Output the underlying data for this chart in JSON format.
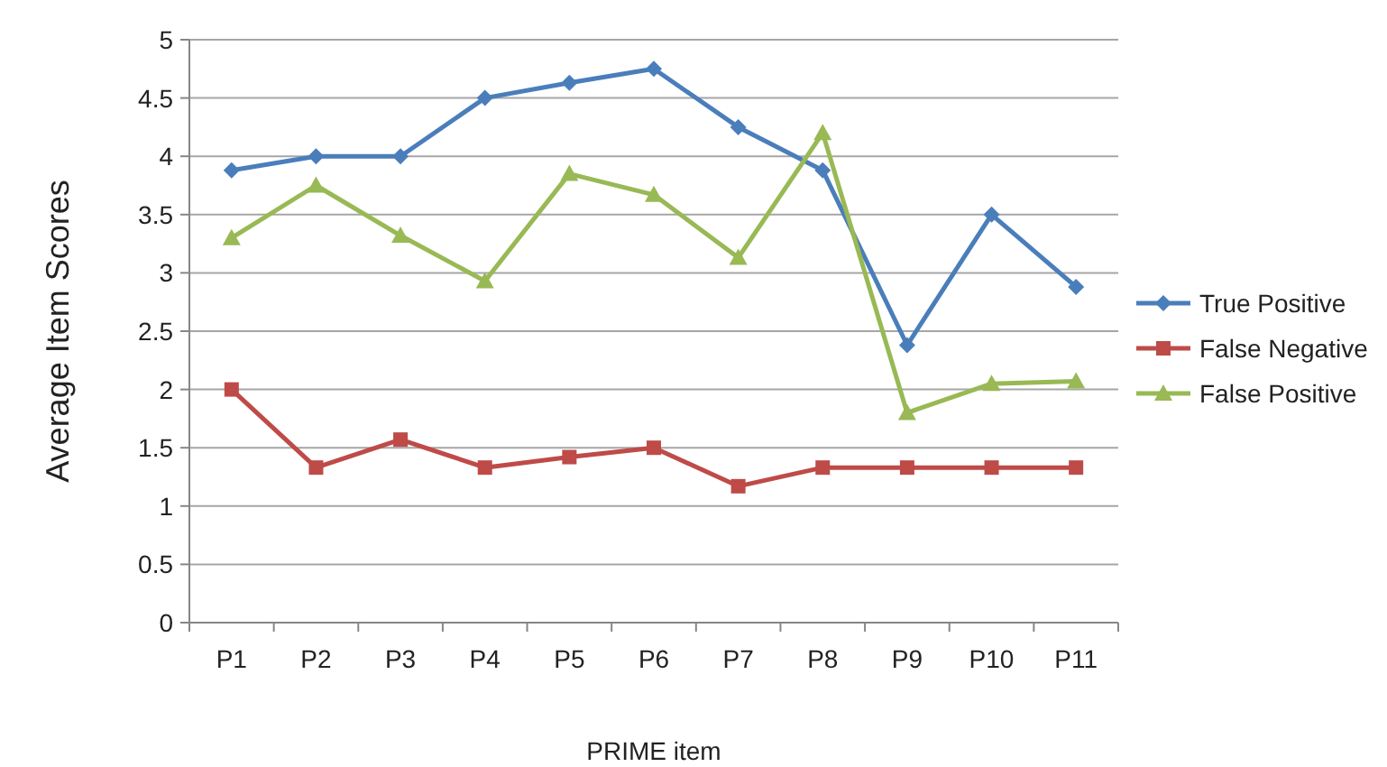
{
  "chart_data": {
    "type": "line",
    "xlabel": "PRIME item",
    "ylabel": "Average Item Scores",
    "categories": [
      "P1",
      "P2",
      "P3",
      "P4",
      "P5",
      "P6",
      "P7",
      "P8",
      "P9",
      "P10",
      "P11"
    ],
    "series": [
      {
        "name": "True Positive",
        "color": "#4a7ebb",
        "marker": "diamond",
        "values": [
          3.88,
          4.0,
          4.0,
          4.5,
          4.63,
          4.75,
          4.25,
          3.88,
          2.38,
          3.5,
          2.88
        ]
      },
      {
        "name": "False Negative",
        "color": "#be4b48",
        "marker": "square",
        "values": [
          2.0,
          1.33,
          1.57,
          1.33,
          1.42,
          1.5,
          1.17,
          1.33,
          1.33,
          1.33,
          1.33
        ]
      },
      {
        "name": "False Positive",
        "color": "#98b954",
        "marker": "triangle",
        "values": [
          3.3,
          3.75,
          3.32,
          2.93,
          3.85,
          3.67,
          3.13,
          4.2,
          1.8,
          2.05,
          2.07
        ]
      }
    ],
    "ylim": [
      0,
      5
    ],
    "yticks": [
      0,
      0.5,
      1,
      1.5,
      2,
      2.5,
      3,
      3.5,
      4,
      4.5,
      5
    ],
    "grid": "y",
    "legend": "right"
  }
}
